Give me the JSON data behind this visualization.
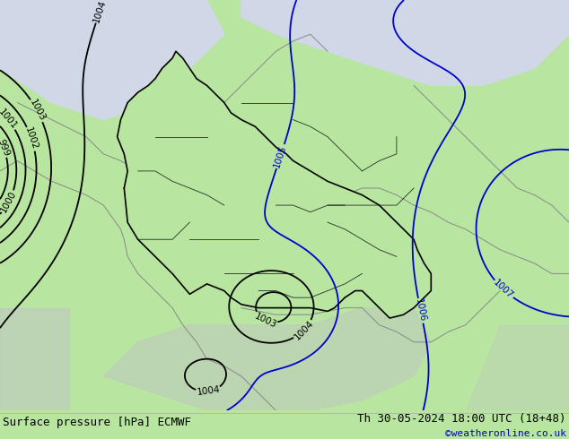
{
  "bottom_left_text": "Surface pressure [hPa] ECMWF",
  "bottom_right_text": "Th 30-05-2024 18:00 UTC (18+48)",
  "bottom_credit": "©weatheronline.co.uk",
  "land_color": "#b8e6a0",
  "sea_color": "#d0d8e8",
  "germany_fill": "#b8e6a0",
  "neighbor_fill": "#b8e6a0",
  "grey_region_color": "#c0c8c0",
  "isobar_color_blue": "#0000cc",
  "isobar_color_black": "#000000",
  "isobar_color_red": "#dd0000",
  "border_color_black": "#000000",
  "border_color_grey": "#888888",
  "bottom_bar_color": "#e8f5e9",
  "bottom_text_color": "#000000",
  "bottom_credit_color": "#0000bb",
  "figsize": [
    6.34,
    4.9
  ],
  "dpi": 100,
  "lon_min": 2.5,
  "lon_max": 19.0,
  "lat_min": 44.5,
  "lat_max": 56.5
}
